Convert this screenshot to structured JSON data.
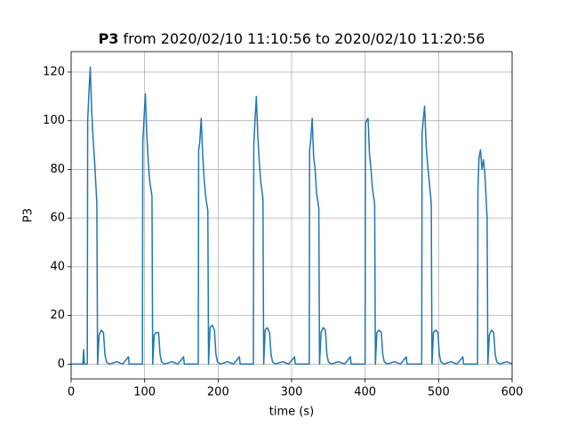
{
  "chart_data": {
    "type": "line",
    "title_series": "P3",
    "title": "from 2020/02/10 11:10:56 to 2020/02/10 11:20:56",
    "xlabel": "time (s)",
    "ylabel": "P3",
    "xlim": [
      0,
      600
    ],
    "ylim": [
      -6.1,
      128.4
    ],
    "xticks": [
      0,
      100,
      200,
      300,
      400,
      500,
      600
    ],
    "yticks": [
      0,
      20,
      40,
      60,
      80,
      100,
      120
    ],
    "grid": true,
    "x": [
      0,
      16,
      17,
      18,
      20,
      22,
      22.5,
      24,
      26,
      28,
      30,
      32,
      35,
      36,
      38,
      41,
      44,
      46,
      48,
      52,
      62,
      70,
      78,
      79,
      95,
      97,
      97.5,
      99,
      101,
      103,
      105,
      107,
      110,
      111,
      113,
      116,
      119,
      121,
      123,
      127,
      137,
      145,
      153,
      154,
      171,
      173,
      173.5,
      175,
      177,
      179,
      181,
      183,
      186,
      187,
      189,
      192,
      195,
      197,
      199,
      203,
      213,
      221,
      229,
      230,
      246,
      248,
      248.5,
      250,
      252,
      254,
      256,
      258,
      261,
      262,
      264,
      267,
      270,
      272,
      274,
      278,
      288,
      296,
      304,
      305,
      322,
      324,
      324.5,
      326,
      328,
      330,
      332,
      334,
      337,
      338,
      340,
      343,
      346,
      348,
      350,
      354,
      364,
      372,
      380,
      381,
      398,
      400,
      400.5,
      402,
      404,
      406,
      408,
      410,
      413,
      414,
      416,
      419,
      422,
      424,
      426,
      430,
      440,
      448,
      456,
      457,
      475,
      477,
      477.5,
      479,
      481,
      483,
      485,
      487,
      490,
      491,
      493,
      496,
      499,
      501,
      503,
      507,
      517,
      525,
      533,
      534,
      551,
      553,
      553.5,
      555,
      557,
      559,
      561,
      563,
      566,
      567,
      569,
      572,
      575,
      577,
      579,
      583,
      593,
      600
    ],
    "series": [
      {
        "name": "P3",
        "color": "#1f77b4",
        "values": [
          0,
          0,
          6,
          0,
          0,
          0,
          100,
          110,
          122,
          104,
          92,
          83,
          66,
          0,
          12,
          14,
          13,
          4,
          1,
          0,
          1,
          0,
          3,
          0,
          0,
          0,
          91,
          100,
          111,
          94,
          83,
          75,
          69,
          0,
          12,
          13,
          13,
          4,
          1,
          0,
          1,
          0,
          3,
          0,
          0,
          0,
          88,
          91,
          101,
          86,
          76,
          69,
          63,
          0,
          15,
          16,
          14,
          4,
          1,
          0,
          1,
          0,
          3,
          0,
          0,
          0,
          90,
          99,
          110,
          94,
          83,
          75,
          68,
          0,
          14,
          15,
          13,
          4,
          1,
          0,
          1,
          0,
          3,
          0,
          0,
          0,
          88,
          92,
          101,
          85,
          80,
          70,
          64,
          0,
          13,
          15,
          14,
          4,
          1,
          0,
          1,
          0,
          3,
          0,
          0,
          0,
          99,
          100,
          101,
          86,
          80,
          72,
          66,
          0,
          13,
          14,
          13,
          4,
          1,
          0,
          1,
          0,
          3,
          0,
          0,
          0,
          95,
          100,
          106,
          90,
          82,
          76,
          66,
          0,
          13,
          14,
          13,
          4,
          1,
          0,
          1,
          0,
          3,
          0,
          0,
          0,
          72,
          85,
          88,
          80,
          84,
          78,
          60,
          0,
          12,
          14,
          13,
          4,
          1,
          0,
          1,
          0
        ]
      }
    ]
  }
}
